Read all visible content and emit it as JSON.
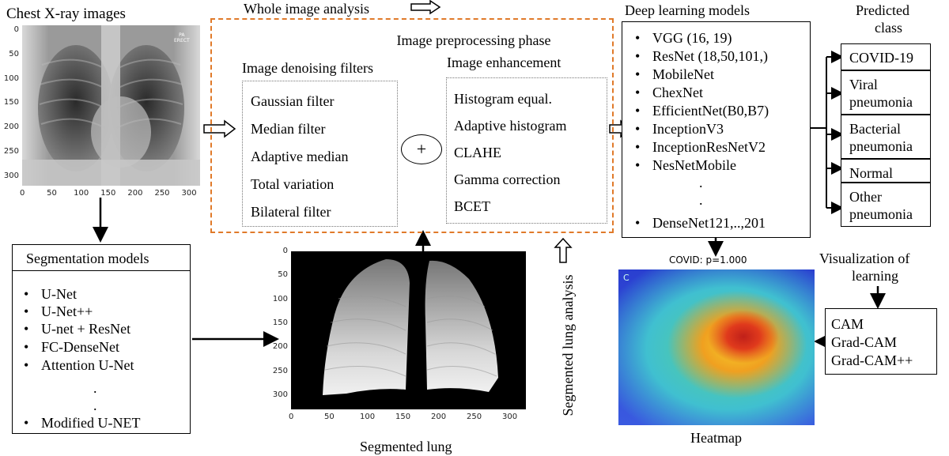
{
  "xray": {
    "title": "Chest X-ray images",
    "marker": [
      "PA",
      "ERECT"
    ],
    "yticks": [
      "0",
      "50",
      "100",
      "150",
      "200",
      "250",
      "300"
    ],
    "xticks": [
      "0",
      "50",
      "100",
      "150",
      "200",
      "250",
      "300"
    ]
  },
  "whole_image_label": "Whole image analysis",
  "preprocessing": {
    "title": "Image preprocessing phase",
    "denoising_title": "Image denoising filters",
    "denoising": [
      "Gaussian filter",
      "Median filter",
      "Adaptive median",
      "Total variation",
      "Bilateral filter"
    ],
    "plus": "+",
    "enhancement_title": "Image enhancement",
    "enhancement": [
      "Histogram equal.",
      "Adaptive histogram",
      "CLAHE",
      "Gamma correction",
      "BCET"
    ]
  },
  "deep_learning": {
    "title": "Deep learning models",
    "models": [
      "VGG (16, 19)",
      "ResNet (18,50,101,)",
      "MobileNet",
      "ChexNet",
      "EfficientNet(B0,B7)",
      "InceptionV3",
      "InceptionResNetV2",
      "NesNetMobile",
      "DenseNet121,..,201"
    ]
  },
  "predicted": {
    "title_line1": "Predicted",
    "title_line2": "class",
    "classes": [
      [
        "COVID-19"
      ],
      [
        "Viral",
        "pneumonia"
      ],
      [
        "Bacterial",
        "pneumonia"
      ],
      [
        "Normal"
      ],
      [
        "Other",
        "pneumonia"
      ]
    ]
  },
  "segmentation": {
    "title": "Segmentation models",
    "models": [
      "U-Net",
      "U-Net++",
      "U-net + ResNet",
      "FC-DenseNet",
      "Attention U-Net",
      "Modified U-NET"
    ]
  },
  "segmented_lung": {
    "caption": "Segmented lung",
    "side_label": "Segmented lung analysis",
    "yticks": [
      "0",
      "50",
      "100",
      "150",
      "200",
      "250",
      "300"
    ],
    "xticks": [
      "0",
      "50",
      "100",
      "150",
      "200",
      "250",
      "300"
    ]
  },
  "heatmap": {
    "label": "COVID: p=1.000",
    "caption": "Heatmap",
    "corner_mark": "C"
  },
  "visualization": {
    "title_line1": "Visualization of",
    "title_line2": "learning",
    "methods": [
      "CAM",
      "Grad-CAM",
      "Grad-CAM++"
    ]
  },
  "colors": {
    "dashed_border": "#e07a2a",
    "heat_core": "#c0201a",
    "heat_bg": "#2a3fd0"
  }
}
